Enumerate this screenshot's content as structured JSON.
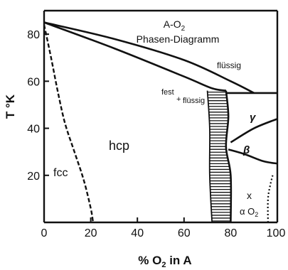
{
  "chart_data": {
    "type": "phase-diagram",
    "title_line1": "A-O",
    "title_line1_sub": "2",
    "title_line2": "Phasen-Diagramm",
    "xlabel_prefix": "% O",
    "xlabel_sub": "2",
    "xlabel_suffix": " in A",
    "ylabel": "T °K",
    "xlim": [
      0,
      100
    ],
    "ylim": [
      0,
      90
    ],
    "xticks": [
      {
        "value": 0,
        "label": "0"
      },
      {
        "value": 20,
        "label": "20"
      },
      {
        "value": 40,
        "label": "40"
      },
      {
        "value": 60,
        "label": "60"
      },
      {
        "value": 80,
        "label": "80"
      },
      {
        "value": 100,
        "label": "100"
      }
    ],
    "yticks": [
      {
        "value": 20,
        "label": "20"
      },
      {
        "value": 40,
        "label": "40"
      },
      {
        "value": 60,
        "label": "60"
      },
      {
        "value": 80,
        "label": "80"
      }
    ],
    "regions": {
      "liquid": "flüssig",
      "solid_liquid_1": "fest",
      "solid_liquid_plus": "+",
      "solid_liquid_2": "flüssig",
      "hcp": "hcp",
      "fcc": "fcc",
      "gamma": "γ",
      "beta": "β",
      "x": "x",
      "alpha_o2": "α O",
      "alpha_o2_sub": "2"
    },
    "boundaries": {
      "liquidus": [
        [
          0,
          85
        ],
        [
          30,
          78
        ],
        [
          60,
          69
        ],
        [
          80,
          60
        ],
        [
          90,
          55
        ]
      ],
      "solidus": [
        [
          0,
          85
        ],
        [
          30,
          74
        ],
        [
          60,
          62
        ],
        [
          72,
          57
        ],
        [
          78,
          56
        ]
      ],
      "three_phase_line": [
        [
          78,
          55
        ],
        [
          100,
          55
        ]
      ],
      "gamma_beta_line": [
        [
          80,
          34
        ],
        [
          90,
          40
        ],
        [
          100,
          44
        ]
      ],
      "beta_lower_line": [
        [
          79,
          31
        ],
        [
          86,
          29
        ],
        [
          94,
          26
        ],
        [
          100,
          25
        ]
      ],
      "fcc_hcp_dashed": [
        [
          0,
          84
        ],
        [
          3,
          70
        ],
        [
          6,
          55
        ],
        [
          9,
          42
        ],
        [
          13,
          30
        ],
        [
          17,
          18
        ],
        [
          20,
          6
        ],
        [
          21,
          0
        ]
      ],
      "hcp_two_phase_left": [
        [
          70,
          56
        ],
        [
          71,
          40
        ],
        [
          71,
          20
        ],
        [
          72,
          0
        ]
      ],
      "hcp_two_phase_right": [
        [
          78,
          56
        ],
        [
          79,
          45
        ],
        [
          78,
          32
        ],
        [
          80,
          20
        ],
        [
          80,
          0
        ]
      ],
      "right_dotted": [
        [
          96,
          0
        ],
        [
          96,
          10
        ],
        [
          97,
          16
        ],
        [
          98,
          20
        ]
      ]
    }
  }
}
